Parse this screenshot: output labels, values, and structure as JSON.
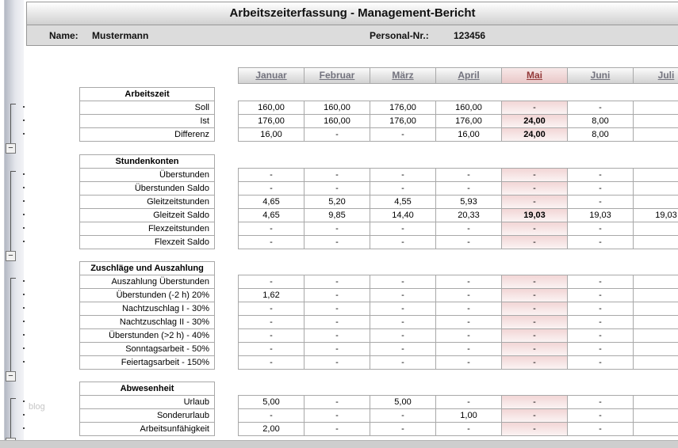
{
  "title": "Arbeitszeiterfassung - Management-Bericht",
  "info_bar": {
    "name_label": "Name:",
    "name_value": "Mustermann",
    "personnel_label": "Personal-Nr.:",
    "personnel_value": "123456"
  },
  "watermark": "blog",
  "ui": {
    "collapse_glyph": "−"
  },
  "colors": {
    "current_month_highlight": "#f2d6d6",
    "month_header_text": "#73737e",
    "current_month_text": "#943a3a"
  },
  "table": {
    "months": [
      "Januar",
      "Februar",
      "März",
      "April",
      "Mai",
      "Juni",
      "Juli"
    ],
    "current_month_index": 4,
    "sections": [
      {
        "header": "Arbeitszeit",
        "rows": [
          {
            "label": "Soll",
            "values": [
              "160,00",
              "160,00",
              "176,00",
              "160,00",
              "-",
              "-",
              ""
            ]
          },
          {
            "label": "Ist",
            "values": [
              "176,00",
              "160,00",
              "176,00",
              "176,00",
              "24,00",
              "8,00",
              ""
            ],
            "bold_current": true
          },
          {
            "label": "Differenz",
            "values": [
              "16,00",
              "-",
              "-",
              "16,00",
              "24,00",
              "8,00",
              ""
            ],
            "bold_current": true
          }
        ]
      },
      {
        "header": "Stundenkonten",
        "rows": [
          {
            "label": "Überstunden",
            "values": [
              "-",
              "-",
              "-",
              "-",
              "-",
              "-",
              ""
            ]
          },
          {
            "label": "Überstunden Saldo",
            "values": [
              "-",
              "-",
              "-",
              "-",
              "-",
              "-",
              ""
            ]
          },
          {
            "label": "Gleitzeitstunden",
            "values": [
              "4,65",
              "5,20",
              "4,55",
              "5,93",
              "-",
              "-",
              ""
            ]
          },
          {
            "label": "Gleitzeit Saldo",
            "values": [
              "4,65",
              "9,85",
              "14,40",
              "20,33",
              "19,03",
              "19,03",
              "19,03"
            ],
            "bold_current": true
          },
          {
            "label": "Flexzeitstunden",
            "values": [
              "-",
              "-",
              "-",
              "-",
              "-",
              "-",
              ""
            ]
          },
          {
            "label": "Flexzeit Saldo",
            "values": [
              "-",
              "-",
              "-",
              "-",
              "-",
              "-",
              ""
            ]
          }
        ]
      },
      {
        "header": "Zuschläge und Auszahlung",
        "rows": [
          {
            "label": "Auszahlung Überstunden",
            "values": [
              "-",
              "-",
              "-",
              "-",
              "-",
              "-",
              ""
            ]
          },
          {
            "label": "Überstunden (-2 h) 20%",
            "values": [
              "1,62",
              "-",
              "-",
              "-",
              "-",
              "-",
              ""
            ]
          },
          {
            "label": "Nachtzuschlag I - 30%",
            "values": [
              "-",
              "-",
              "-",
              "-",
              "-",
              "-",
              ""
            ]
          },
          {
            "label": "Nachtzuschlag II - 30%",
            "values": [
              "-",
              "-",
              "-",
              "-",
              "-",
              "-",
              ""
            ]
          },
          {
            "label": "Überstunden (>2 h) - 40%",
            "values": [
              "-",
              "-",
              "-",
              "-",
              "-",
              "-",
              ""
            ]
          },
          {
            "label": "Sonntagsarbeit - 50%",
            "values": [
              "-",
              "-",
              "-",
              "-",
              "-",
              "-",
              ""
            ]
          },
          {
            "label": "Feiertagsarbeit - 150%",
            "values": [
              "-",
              "-",
              "-",
              "-",
              "-",
              "-",
              ""
            ]
          }
        ]
      },
      {
        "header": "Abwesenheit",
        "rows": [
          {
            "label": "Urlaub",
            "values": [
              "5,00",
              "-",
              "5,00",
              "-",
              "-",
              "-",
              ""
            ]
          },
          {
            "label": "Sonderurlaub",
            "values": [
              "-",
              "-",
              "-",
              "1,00",
              "-",
              "-",
              ""
            ]
          },
          {
            "label": "Arbeitsunfähigkeit",
            "values": [
              "2,00",
              "-",
              "-",
              "-",
              "-",
              "-",
              ""
            ]
          }
        ]
      }
    ]
  }
}
